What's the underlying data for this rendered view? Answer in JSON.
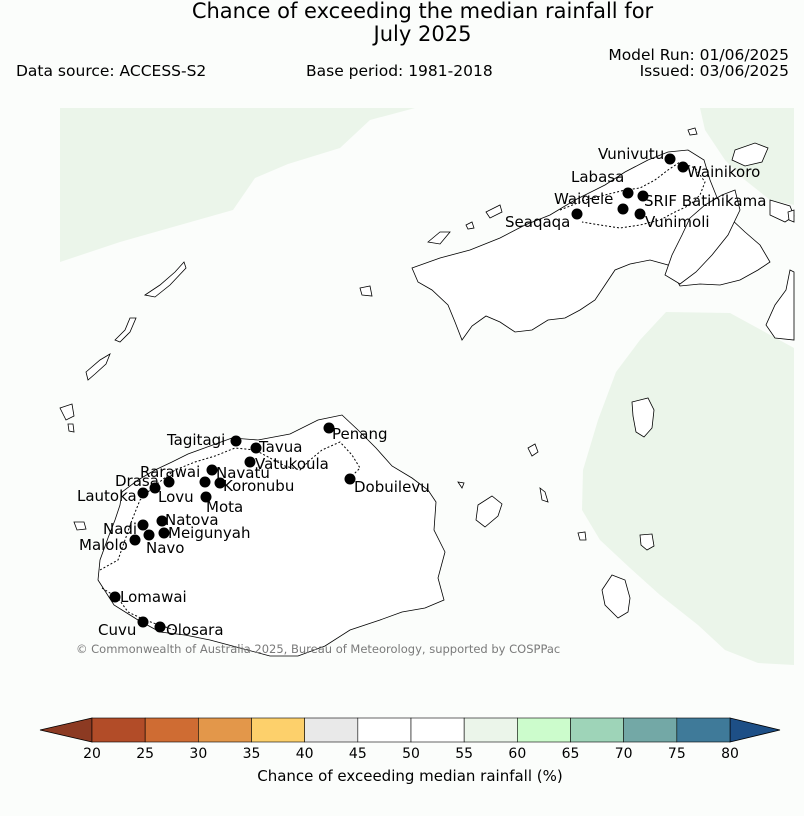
{
  "title_line1": "Chance of exceeding the median rainfall for",
  "title_line2": "July 2025",
  "data_source": "Data source: ACCESS-S2",
  "base_period": "Base period: 1981-2018",
  "model_run": "Model Run: 01/06/2025",
  "issued": "Issued: 03/06/2025",
  "copyright": "© Commonwealth of Australia 2025, Bureau of Meteorology, supported by COSPPac",
  "stations": [
    {
      "name": "Vunivutu"
    },
    {
      "name": "Wainikoro"
    },
    {
      "name": "Labasa"
    },
    {
      "name": "Waiqele"
    },
    {
      "name": "SRIF Batinikama"
    },
    {
      "name": "Seaqaqa"
    },
    {
      "name": "Vunimoli"
    },
    {
      "name": "Tagitagi"
    },
    {
      "name": "Tavua"
    },
    {
      "name": "Penang"
    },
    {
      "name": "Vatukoula"
    },
    {
      "name": "Rarawai"
    },
    {
      "name": "Navatu"
    },
    {
      "name": "Drasa"
    },
    {
      "name": "Koronubu"
    },
    {
      "name": "Dobuilevu"
    },
    {
      "name": "Lautoka"
    },
    {
      "name": "Lovu"
    },
    {
      "name": "Mota"
    },
    {
      "name": "Natova"
    },
    {
      "name": "Nadi"
    },
    {
      "name": "Meigunyah"
    },
    {
      "name": "Malolo"
    },
    {
      "name": "Navo"
    },
    {
      "name": "Lomawai"
    },
    {
      "name": "Cuvu"
    },
    {
      "name": "Olosara"
    }
  ],
  "colorbar": {
    "label": "Chance of exceeding median rainfall (%)",
    "ticks": [
      "20",
      "25",
      "30",
      "35",
      "40",
      "45",
      "50",
      "55",
      "60",
      "65",
      "70",
      "75",
      "80"
    ],
    "colors": [
      "#b24c28",
      "#cf6c33",
      "#e3974a",
      "#fdd06b",
      "#e9e9e9",
      "#ffffff",
      "#ffffff",
      "#ebf5ea",
      "#ccfccc",
      "#9ed4b8",
      "#73a8a6",
      "#3f7a99"
    ],
    "under_color": "#8c3a22",
    "over_color": "#1d4f86"
  },
  "region_colors": {
    "shade_55_60": "#ebf5ea",
    "background": "#fbfdfb"
  }
}
